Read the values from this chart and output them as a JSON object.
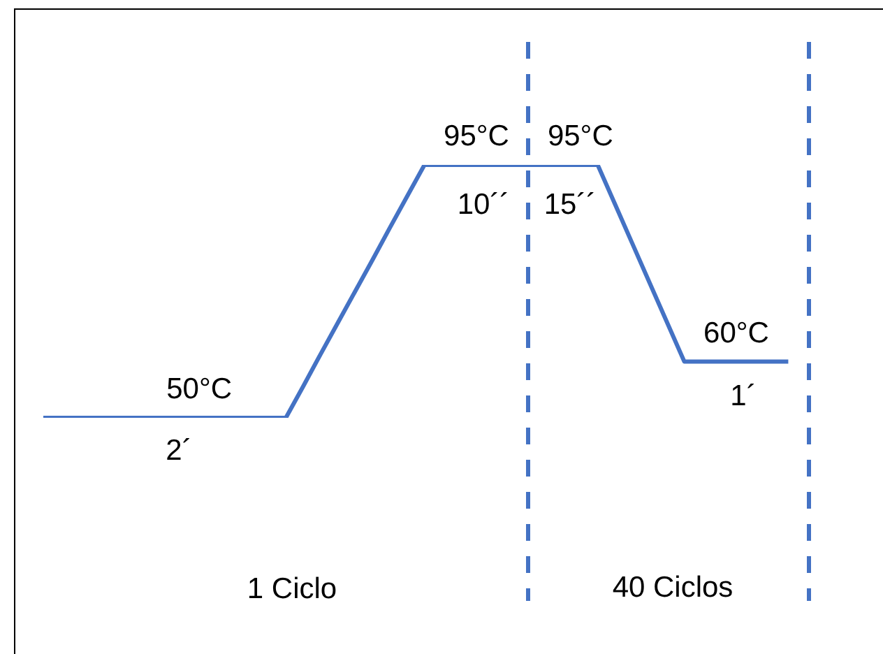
{
  "chart_data": {
    "type": "line",
    "categories": [
      null,
      null,
      null,
      null,
      null,
      null,
      null,
      null,
      null,
      null,
      null,
      null,
      null,
      null,
      null,
      null,
      null,
      null,
      null,
      null,
      null,
      null,
      null,
      null,
      null,
      null,
      null,
      null,
      null,
      null,
      null,
      null,
      null,
      null,
      null,
      null,
      null,
      null,
      null,
      null,
      null,
      null,
      null,
      null
    ],
    "values": [
      50,
      50,
      50,
      50,
      50,
      50,
      50,
      50,
      50,
      50,
      50,
      50,
      50,
      50,
      50,
      55.6,
      61.3,
      66.9,
      72.5,
      78.1,
      83.8,
      89.4,
      95,
      95,
      95,
      95,
      95,
      95,
      95,
      95,
      95,
      95,
      95,
      88,
      81,
      74,
      67,
      60,
      60,
      60,
      60,
      60,
      60,
      60
    ],
    "value_labels": [
      null,
      null,
      null,
      null,
      null,
      null,
      null,
      null,
      null,
      "50°C",
      null,
      null,
      null,
      null,
      null,
      null,
      null,
      null,
      null,
      null,
      null,
      null,
      null,
      null,
      null,
      "95°C",
      null,
      null,
      null,
      null,
      null,
      "95°C",
      null,
      null,
      null,
      null,
      null,
      null,
      null,
      null,
      "60°C",
      null,
      null,
      null
    ],
    "color": "#4472c4",
    "tick_labels": false,
    "marker": "none",
    "line_style": "solid",
    "annotations": [
      "2´",
      "10´´",
      "15´´",
      "1´",
      "1 Ciclo",
      "40 Ciclos"
    ]
  }
}
